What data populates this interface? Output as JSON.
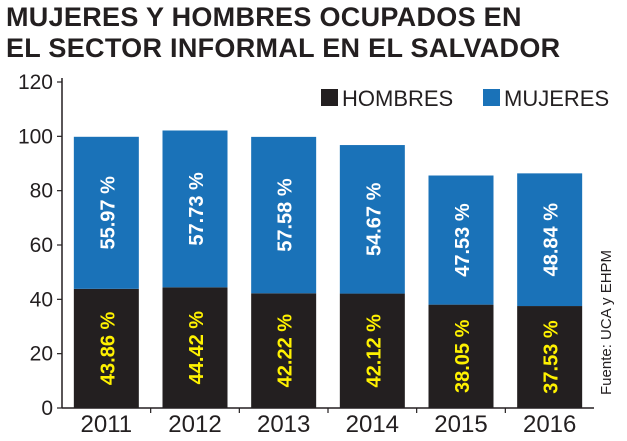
{
  "chart_data": {
    "type": "bar",
    "stacked": true,
    "title": [
      "MUJERES Y HOMBRES OCUPADOS EN",
      "EL SECTOR INFORMAL EN EL SALVADOR"
    ],
    "categories": [
      "2011",
      "2012",
      "2013",
      "2014",
      "2015",
      "2016"
    ],
    "series": [
      {
        "name": "HOMBRES",
        "color": "#231f20",
        "label_color": "#fff200",
        "values": [
          43.86,
          44.42,
          42.22,
          42.12,
          38.05,
          37.53
        ],
        "labels": [
          "43.86 %",
          "44.42 %",
          "42.22 %",
          "42.12 %",
          "38.05 %",
          "37.53 %"
        ]
      },
      {
        "name": "MUJERES",
        "color": "#1a72b8",
        "label_color": "#ffffff",
        "values": [
          55.97,
          57.73,
          57.58,
          54.67,
          47.53,
          48.84
        ],
        "labels": [
          "55.97 %",
          "57.73 %",
          "57.58 %",
          "54.67 %",
          "47.53 %",
          "48.84 %"
        ]
      }
    ],
    "ylim": [
      0,
      120
    ],
    "yticks": [
      "0",
      "20",
      "40",
      "60",
      "80",
      "100",
      "120"
    ],
    "grid": false,
    "legend": "top-right",
    "source": "Fuente: UCA y EHPM"
  }
}
